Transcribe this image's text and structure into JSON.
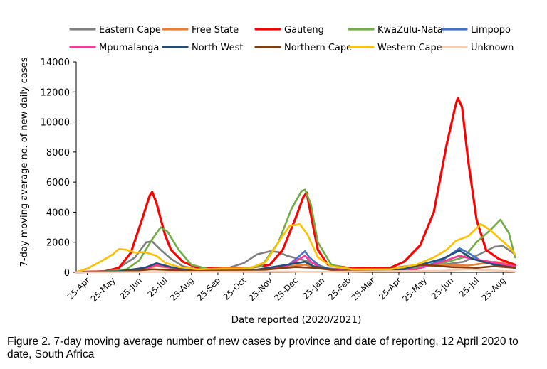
{
  "figure": {
    "caption": "Figure 2. 7-day moving average number of new cases by province and date of reporting, 12 April 2020 to date, South Africa"
  },
  "chart_data": {
    "type": "line",
    "title": "",
    "xlabel": "Date reported (2020/2021)",
    "ylabel": "7-day moving average no. of new daily cases",
    "ylim": [
      0,
      14000
    ],
    "yticks": [
      0,
      2000,
      4000,
      6000,
      8000,
      10000,
      12000,
      14000
    ],
    "ytick_labels": [
      "0",
      "2000",
      "4000",
      "6000",
      "8000",
      "10000",
      "12000",
      "14000"
    ],
    "xlim": [
      "2020-04-12",
      "2021-09-08"
    ],
    "xticks": [
      "2020-04-25",
      "2020-05-25",
      "2020-06-25",
      "2020-07-25",
      "2020-08-25",
      "2020-09-25",
      "2020-10-25",
      "2020-11-25",
      "2020-12-25",
      "2021-01-25",
      "2021-02-25",
      "2021-03-25",
      "2021-04-25",
      "2021-05-25",
      "2021-06-25",
      "2021-07-25",
      "2021-08-25"
    ],
    "xtick_labels": [
      "25-Apr",
      "25-May",
      "25-Jun",
      "25-Jul",
      "25-Aug",
      "25-Sep",
      "25-Oct",
      "25-Nov",
      "25-Dec",
      "25-Jan",
      "25-Feb",
      "25-Mar",
      "25-Apr",
      "25-May",
      "25-Jun",
      "25-Jul",
      "25-Aug"
    ],
    "grid": false,
    "legend_placement": "top",
    "series": [
      {
        "name": "Eastern Cape",
        "color": "#808080",
        "points": [
          [
            "2020-04-12",
            10
          ],
          [
            "2020-05-15",
            80
          ],
          [
            "2020-06-01",
            300
          ],
          [
            "2020-06-20",
            1000
          ],
          [
            "2020-07-03",
            2000
          ],
          [
            "2020-07-10",
            2050
          ],
          [
            "2020-07-20",
            1500
          ],
          [
            "2020-08-01",
            900
          ],
          [
            "2020-08-15",
            400
          ],
          [
            "2020-09-01",
            200
          ],
          [
            "2020-10-01",
            180
          ],
          [
            "2020-10-25",
            600
          ],
          [
            "2020-11-10",
            1200
          ],
          [
            "2020-11-25",
            1400
          ],
          [
            "2020-12-05",
            1350
          ],
          [
            "2020-12-15",
            1100
          ],
          [
            "2021-01-01",
            850
          ],
          [
            "2021-01-15",
            600
          ],
          [
            "2021-02-01",
            250
          ],
          [
            "2021-03-01",
            150
          ],
          [
            "2021-04-15",
            200
          ],
          [
            "2021-05-15",
            400
          ],
          [
            "2021-06-15",
            500
          ],
          [
            "2021-07-10",
            700
          ],
          [
            "2021-08-01",
            1300
          ],
          [
            "2021-08-15",
            1700
          ],
          [
            "2021-08-25",
            1750
          ],
          [
            "2021-09-08",
            1200
          ]
        ]
      },
      {
        "name": "Free State",
        "color": "#ed7d31",
        "points": [
          [
            "2020-04-12",
            5
          ],
          [
            "2020-06-01",
            60
          ],
          [
            "2020-07-01",
            250
          ],
          [
            "2020-07-15",
            400
          ],
          [
            "2020-08-01",
            300
          ],
          [
            "2020-09-01",
            100
          ],
          [
            "2020-11-01",
            100
          ],
          [
            "2020-12-15",
            400
          ],
          [
            "2021-01-05",
            500
          ],
          [
            "2021-01-20",
            300
          ],
          [
            "2021-02-15",
            100
          ],
          [
            "2021-04-15",
            200
          ],
          [
            "2021-05-15",
            350
          ],
          [
            "2021-06-15",
            500
          ],
          [
            "2021-07-15",
            450
          ],
          [
            "2021-08-15",
            700
          ],
          [
            "2021-09-08",
            500
          ]
        ]
      },
      {
        "name": "Gauteng",
        "color": "#ff0000",
        "points": [
          [
            "2020-04-12",
            20
          ],
          [
            "2020-05-15",
            50
          ],
          [
            "2020-06-01",
            300
          ],
          [
            "2020-06-15",
            1300
          ],
          [
            "2020-06-28",
            3500
          ],
          [
            "2020-07-07",
            5100
          ],
          [
            "2020-07-10",
            5350
          ],
          [
            "2020-07-15",
            4600
          ],
          [
            "2020-07-25",
            2500
          ],
          [
            "2020-08-01",
            1500
          ],
          [
            "2020-08-15",
            700
          ],
          [
            "2020-09-01",
            300
          ],
          [
            "2020-10-01",
            300
          ],
          [
            "2020-11-01",
            300
          ],
          [
            "2020-11-25",
            500
          ],
          [
            "2020-12-10",
            1500
          ],
          [
            "2020-12-25",
            3600
          ],
          [
            "2021-01-03",
            5000
          ],
          [
            "2021-01-07",
            5300
          ],
          [
            "2021-01-12",
            3800
          ],
          [
            "2021-01-20",
            1500
          ],
          [
            "2021-02-01",
            500
          ],
          [
            "2021-03-01",
            250
          ],
          [
            "2021-04-15",
            300
          ],
          [
            "2021-05-01",
            700
          ],
          [
            "2021-05-20",
            1800
          ],
          [
            "2021-06-05",
            4000
          ],
          [
            "2021-06-20",
            8500
          ],
          [
            "2021-06-30",
            11000
          ],
          [
            "2021-07-03",
            11600
          ],
          [
            "2021-07-08",
            11000
          ],
          [
            "2021-07-15",
            7500
          ],
          [
            "2021-07-25",
            3500
          ],
          [
            "2021-08-05",
            1500
          ],
          [
            "2021-08-20",
            900
          ],
          [
            "2021-09-08",
            500
          ]
        ]
      },
      {
        "name": "KwaZulu-Natal",
        "color": "#70ad47",
        "points": [
          [
            "2020-04-12",
            10
          ],
          [
            "2020-05-15",
            50
          ],
          [
            "2020-06-10",
            200
          ],
          [
            "2020-06-25",
            800
          ],
          [
            "2020-07-10",
            2200
          ],
          [
            "2020-07-20",
            3000
          ],
          [
            "2020-07-28",
            2700
          ],
          [
            "2020-08-10",
            1500
          ],
          [
            "2020-08-25",
            500
          ],
          [
            "2020-09-15",
            200
          ],
          [
            "2020-10-15",
            200
          ],
          [
            "2020-11-15",
            400
          ],
          [
            "2020-12-05",
            2000
          ],
          [
            "2020-12-20",
            4200
          ],
          [
            "2021-01-01",
            5400
          ],
          [
            "2021-01-05",
            5500
          ],
          [
            "2021-01-12",
            4500
          ],
          [
            "2021-01-20",
            2000
          ],
          [
            "2021-02-05",
            500
          ],
          [
            "2021-03-01",
            200
          ],
          [
            "2021-04-15",
            200
          ],
          [
            "2021-05-15",
            300
          ],
          [
            "2021-06-15",
            600
          ],
          [
            "2021-07-10",
            1000
          ],
          [
            "2021-07-25",
            2000
          ],
          [
            "2021-08-10",
            2800
          ],
          [
            "2021-08-22",
            3500
          ],
          [
            "2021-09-01",
            2600
          ],
          [
            "2021-09-08",
            1000
          ]
        ]
      },
      {
        "name": "Limpopo",
        "color": "#4472c4",
        "points": [
          [
            "2020-04-12",
            5
          ],
          [
            "2020-06-01",
            50
          ],
          [
            "2020-07-01",
            200
          ],
          [
            "2020-07-15",
            500
          ],
          [
            "2020-08-01",
            300
          ],
          [
            "2020-09-01",
            100
          ],
          [
            "2020-11-01",
            100
          ],
          [
            "2020-12-15",
            400
          ],
          [
            "2021-01-05",
            1400
          ],
          [
            "2021-01-10",
            1000
          ],
          [
            "2021-01-25",
            300
          ],
          [
            "2021-03-01",
            100
          ],
          [
            "2021-05-15",
            200
          ],
          [
            "2021-06-15",
            800
          ],
          [
            "2021-07-05",
            1600
          ],
          [
            "2021-07-15",
            1300
          ],
          [
            "2021-08-01",
            700
          ],
          [
            "2021-09-08",
            300
          ]
        ]
      },
      {
        "name": "Mpumalanga",
        "color": "#ff3399",
        "points": [
          [
            "2020-04-12",
            5
          ],
          [
            "2020-06-01",
            50
          ],
          [
            "2020-07-01",
            200
          ],
          [
            "2020-07-15",
            500
          ],
          [
            "2020-08-01",
            300
          ],
          [
            "2020-09-01",
            100
          ],
          [
            "2020-11-01",
            100
          ],
          [
            "2020-12-15",
            400
          ],
          [
            "2021-01-05",
            1100
          ],
          [
            "2021-01-12",
            700
          ],
          [
            "2021-01-25",
            250
          ],
          [
            "2021-03-01",
            100
          ],
          [
            "2021-05-15",
            200
          ],
          [
            "2021-06-15",
            700
          ],
          [
            "2021-07-05",
            1100
          ],
          [
            "2021-07-20",
            900
          ],
          [
            "2021-08-10",
            700
          ],
          [
            "2021-09-08",
            400
          ]
        ]
      },
      {
        "name": "North West",
        "color": "#1f4e79",
        "points": [
          [
            "2020-04-12",
            5
          ],
          [
            "2020-06-01",
            60
          ],
          [
            "2020-07-01",
            300
          ],
          [
            "2020-07-15",
            600
          ],
          [
            "2020-08-01",
            350
          ],
          [
            "2020-09-01",
            100
          ],
          [
            "2020-11-01",
            100
          ],
          [
            "2020-12-15",
            500
          ],
          [
            "2021-01-05",
            700
          ],
          [
            "2021-01-15",
            400
          ],
          [
            "2021-02-15",
            100
          ],
          [
            "2021-05-01",
            200
          ],
          [
            "2021-06-15",
            900
          ],
          [
            "2021-07-05",
            1450
          ],
          [
            "2021-07-20",
            900
          ],
          [
            "2021-08-15",
            500
          ],
          [
            "2021-09-08",
            300
          ]
        ]
      },
      {
        "name": "Northern Cape",
        "color": "#843c0c",
        "points": [
          [
            "2020-04-12",
            5
          ],
          [
            "2020-06-01",
            30
          ],
          [
            "2020-07-10",
            200
          ],
          [
            "2020-08-01",
            150
          ],
          [
            "2020-09-15",
            80
          ],
          [
            "2020-11-15",
            150
          ],
          [
            "2020-12-25",
            350
          ],
          [
            "2021-01-15",
            300
          ],
          [
            "2021-02-15",
            100
          ],
          [
            "2021-04-15",
            250
          ],
          [
            "2021-05-10",
            450
          ],
          [
            "2021-05-25",
            500
          ],
          [
            "2021-06-25",
            350
          ],
          [
            "2021-07-25",
            300
          ],
          [
            "2021-08-15",
            400
          ],
          [
            "2021-09-08",
            300
          ]
        ]
      },
      {
        "name": "Western Cape",
        "color": "#ffc000",
        "points": [
          [
            "2020-04-12",
            20
          ],
          [
            "2020-04-25",
            250
          ],
          [
            "2020-05-10",
            700
          ],
          [
            "2020-05-25",
            1200
          ],
          [
            "2020-06-01",
            1550
          ],
          [
            "2020-06-10",
            1500
          ],
          [
            "2020-06-20",
            1300
          ],
          [
            "2020-07-01",
            1350
          ],
          [
            "2020-07-15",
            1100
          ],
          [
            "2020-07-25",
            650
          ],
          [
            "2020-08-10",
            350
          ],
          [
            "2020-09-01",
            200
          ],
          [
            "2020-10-01",
            250
          ],
          [
            "2020-11-01",
            250
          ],
          [
            "2020-11-20",
            700
          ],
          [
            "2020-12-05",
            2000
          ],
          [
            "2020-12-18",
            3100
          ],
          [
            "2020-12-30",
            3200
          ],
          [
            "2021-01-08",
            2500
          ],
          [
            "2021-01-20",
            1000
          ],
          [
            "2021-02-05",
            400
          ],
          [
            "2021-03-01",
            200
          ],
          [
            "2021-04-15",
            200
          ],
          [
            "2021-05-15",
            500
          ],
          [
            "2021-06-05",
            1000
          ],
          [
            "2021-06-20",
            1500
          ],
          [
            "2021-07-01",
            2100
          ],
          [
            "2021-07-15",
            2400
          ],
          [
            "2021-07-30",
            3200
          ],
          [
            "2021-08-08",
            2900
          ],
          [
            "2021-08-20",
            2300
          ],
          [
            "2021-09-01",
            1700
          ],
          [
            "2021-09-08",
            1200
          ]
        ]
      },
      {
        "name": "Unknown",
        "color": "#f8cbad",
        "points": [
          [
            "2020-04-12",
            0
          ],
          [
            "2020-12-15",
            50
          ],
          [
            "2021-01-15",
            30
          ],
          [
            "2021-06-15",
            100
          ],
          [
            "2021-07-15",
            200
          ],
          [
            "2021-09-08",
            50
          ]
        ]
      }
    ]
  }
}
